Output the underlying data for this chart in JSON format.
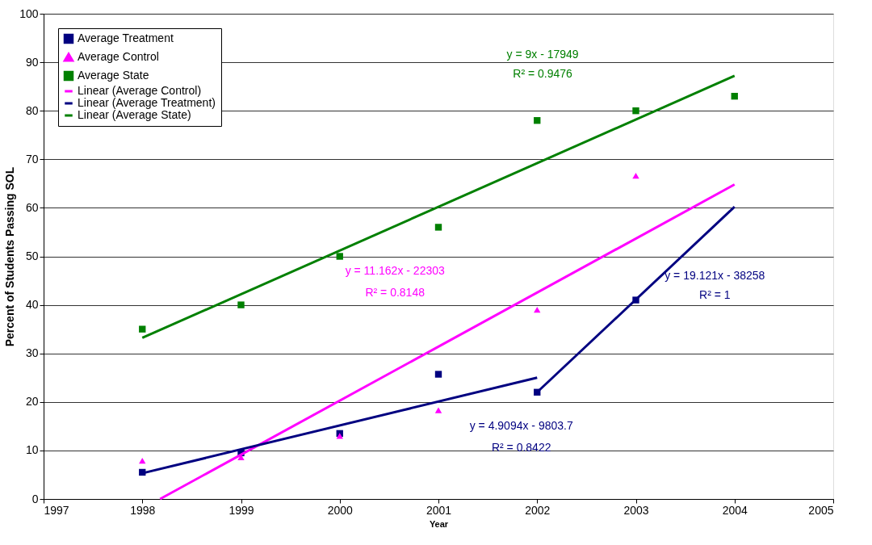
{
  "chart_data": {
    "type": "scatter",
    "xlabel": "Year",
    "ylabel": "Percent of Students Passing SOL",
    "xlim": [
      1997,
      2005
    ],
    "xticks": [
      1997,
      1998,
      1999,
      2000,
      2001,
      2002,
      2003,
      2004,
      2005
    ],
    "ylim": [
      0,
      100
    ],
    "yticks": [
      0,
      10,
      20,
      30,
      40,
      50,
      60,
      70,
      80,
      90,
      100
    ],
    "grid": "y",
    "legend": "top left",
    "series": [
      {
        "name": "Average Treatment",
        "marker": "square",
        "color": "#000080",
        "x": [
          1998,
          1999,
          2000,
          2001,
          2002,
          2003
        ],
        "values": [
          5.5,
          9.5,
          13.5,
          25.7,
          22,
          41
        ]
      },
      {
        "name": "Average Control",
        "marker": "triangle",
        "color": "#ff00ff",
        "x": [
          1998,
          1999,
          2000,
          2001,
          2002,
          2003
        ],
        "values": [
          7.9,
          8.6,
          13,
          18.3,
          39,
          66.6
        ]
      },
      {
        "name": "Average State",
        "marker": "square",
        "color": "#008000",
        "x": [
          1998,
          1999,
          2000,
          2001,
          2002,
          2003,
          2004
        ],
        "values": [
          35,
          40,
          50,
          56,
          78,
          80,
          83
        ]
      },
      {
        "name": "Linear (Average Control)",
        "type": "line",
        "marker": "none",
        "color": "#ff00ff",
        "x": [
          1998.18,
          2004
        ],
        "values": [
          0,
          64.8
        ]
      },
      {
        "name": "Linear (Average Treatment)",
        "type": "line",
        "marker": "none",
        "color": "#000080",
        "x": [
          1998,
          2002
        ],
        "values": [
          5.3,
          25
        ]
      },
      {
        "name": "Linear (Average State)",
        "type": "line",
        "marker": "none",
        "color": "#008000",
        "x": [
          1998,
          2004
        ],
        "values": [
          33.2,
          87.2
        ]
      },
      {
        "type": "line",
        "marker": "none",
        "color": "#000080",
        "x": [
          2002,
          2004
        ],
        "values": [
          22,
          60.2
        ]
      }
    ],
    "annotations": [
      "y = 9x - 17949",
      "R² = 0.9476",
      "y = 11.162x - 22303",
      "R² = 0.8148",
      "y = 4.9094x - 9803.7",
      "R² = 0.8422",
      "y = 19.121x - 38258",
      "R² = 1"
    ]
  }
}
